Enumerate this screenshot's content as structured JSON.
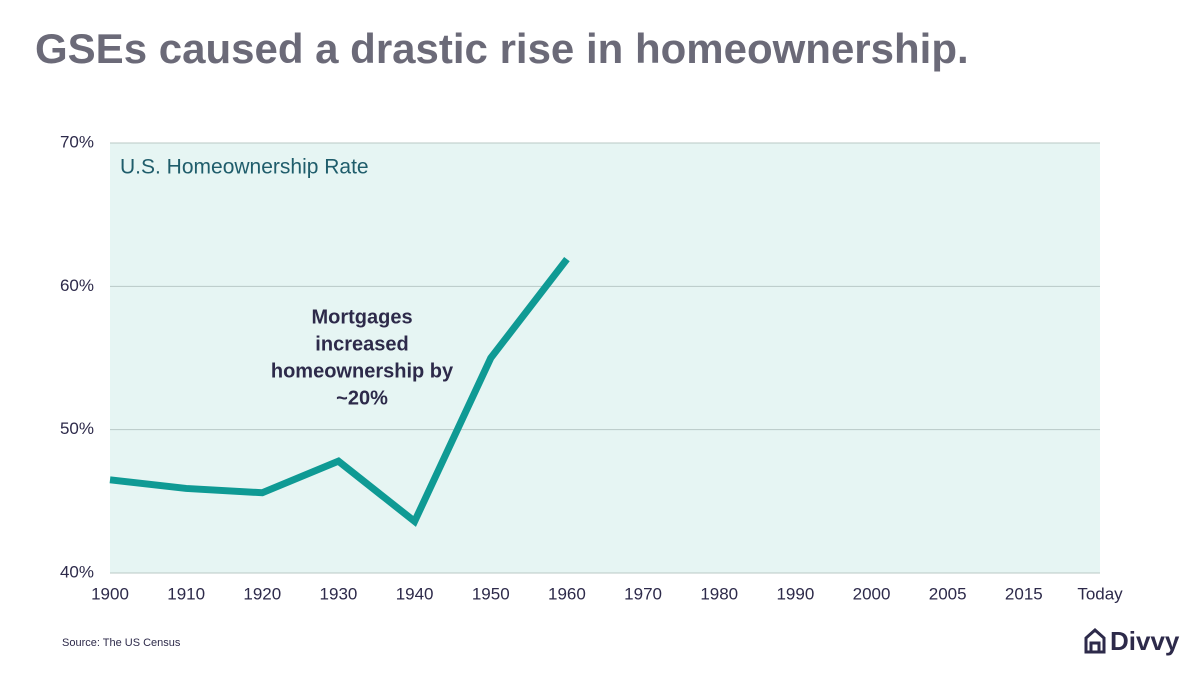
{
  "chart_data": {
    "type": "line",
    "title": "GSEs caused a drastic rise in homeownership.",
    "subtitle": "U.S. Homeownership Rate",
    "categories": [
      "1900",
      "1910",
      "1920",
      "1930",
      "1940",
      "1950",
      "1960",
      "1970",
      "1980",
      "1990",
      "2000",
      "2005",
      "2015",
      "Today"
    ],
    "series": [
      {
        "name": "U.S. Homeownership Rate",
        "color": "#0f9a94",
        "values": [
          46.5,
          45.9,
          45.6,
          47.8,
          43.6,
          55.0,
          61.9,
          null,
          null,
          null,
          null,
          null,
          null,
          null
        ]
      }
    ],
    "ylim": [
      40,
      70
    ],
    "yticks": [
      {
        "value": 40,
        "label": "40%"
      },
      {
        "value": 50,
        "label": "50%"
      },
      {
        "value": 60,
        "label": "60%"
      },
      {
        "value": 70,
        "label": "70%"
      }
    ],
    "grid": true,
    "plot_background": "#e6f5f3",
    "annotation": [
      "Mortgages",
      "increased",
      "homeownership by",
      "~20%"
    ],
    "source": "Source: The US Census",
    "brand": "Divvy"
  }
}
